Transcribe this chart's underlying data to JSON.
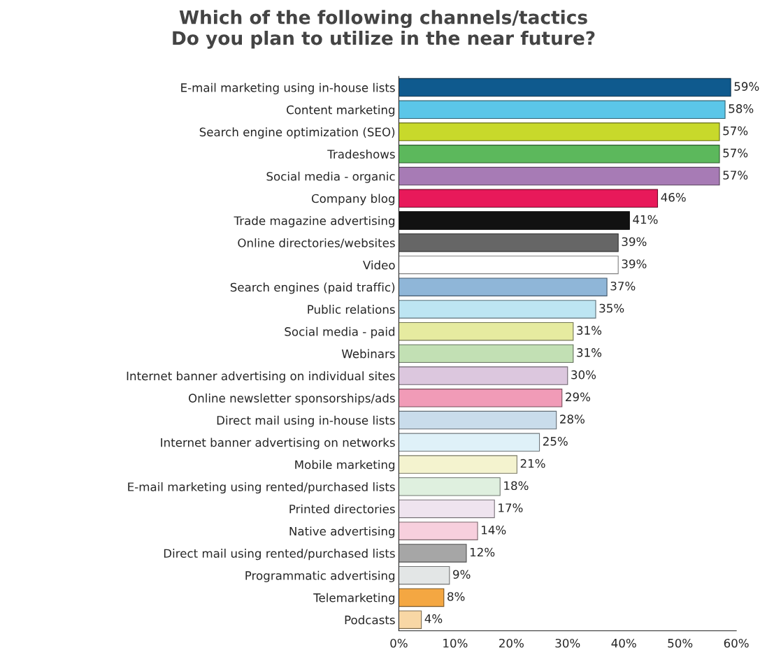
{
  "chart_data": {
    "type": "bar",
    "orientation": "horizontal",
    "title": "Which of the following channels/tactics\nDo you plan to utilize in the near future?",
    "categories": [
      "E-mail marketing using in-house lists",
      "Content marketing",
      "Search engine optimization (SEO)",
      "Tradeshows",
      "Social media - organic",
      "Company blog",
      "Trade magazine advertising",
      "Online directories/websites",
      "Video",
      "Search engines (paid traffic)",
      "Public relations",
      "Social media - paid",
      "Webinars",
      "Internet banner advertising on individual sites",
      "Online newsletter sponsorships/ads",
      "Direct mail using in-house lists",
      "Internet banner advertising on networks",
      "Mobile marketing",
      "E-mail marketing using rented/purchased lists",
      "Printed directories",
      "Native advertising",
      "Direct mail using rented/purchased lists",
      "Programmatic advertising",
      "Telemarketing",
      "Podcasts"
    ],
    "values": [
      59,
      58,
      57,
      57,
      57,
      46,
      41,
      39,
      39,
      37,
      35,
      31,
      31,
      30,
      29,
      28,
      25,
      21,
      18,
      17,
      14,
      12,
      9,
      8,
      4
    ],
    "value_labels": [
      "59%",
      "58%",
      "57%",
      "57%",
      "57%",
      "46%",
      "41%",
      "39%",
      "39%",
      "37%",
      "35%",
      "31%",
      "31%",
      "30%",
      "29%",
      "28%",
      "25%",
      "21%",
      "18%",
      "17%",
      "14%",
      "12%",
      "9%",
      "8%",
      "4%"
    ],
    "colors": [
      "#0f5a8e",
      "#5bc6e8",
      "#c8d92b",
      "#5cb85c",
      "#a77bb5",
      "#e8195a",
      "#111111",
      "#666666",
      "#ffffff",
      "#8fb6d8",
      "#bde5f2",
      "#e6eba0",
      "#c2e0b4",
      "#dcc7de",
      "#f19bb7",
      "#c9dceb",
      "#dff1f8",
      "#f4f3cf",
      "#dff0df",
      "#efe4ef",
      "#f7cfdd",
      "#a6a6a6",
      "#e3e6e6",
      "#f4a742",
      "#f8d7a5"
    ],
    "xlim": [
      0,
      60
    ],
    "xticks": [
      {
        "value": 0,
        "label": "0%"
      },
      {
        "value": 10,
        "label": "10%"
      },
      {
        "value": 20,
        "label": "20%"
      },
      {
        "value": 30,
        "label": "30%"
      },
      {
        "value": 40,
        "label": "40%"
      },
      {
        "value": 50,
        "label": "50%"
      },
      {
        "value": 60,
        "label": "60%"
      }
    ],
    "grid": false,
    "legend": false
  }
}
